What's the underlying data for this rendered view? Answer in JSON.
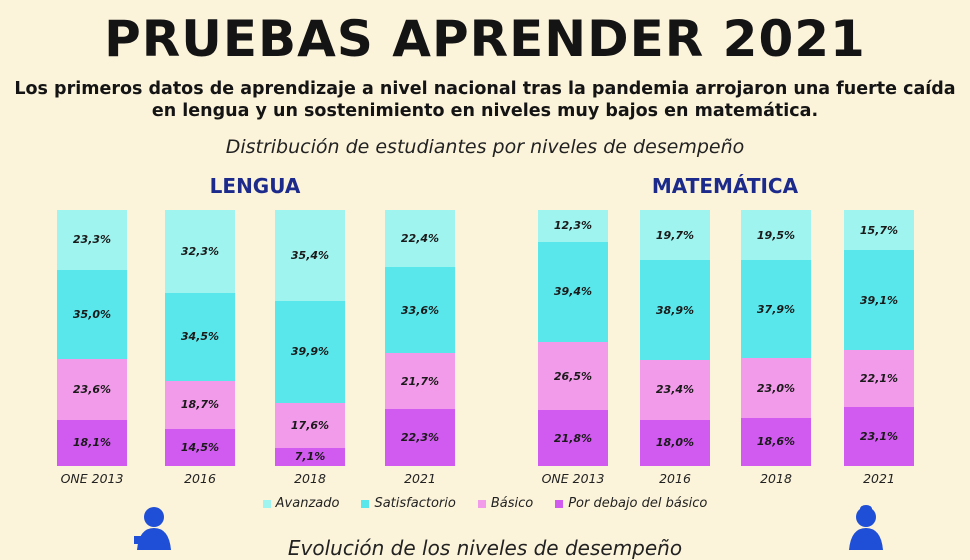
{
  "header": {
    "title": "PRUEBAS APRENDER 2021",
    "subtitle": "Los primeros datos de aprendizaje a nivel nacional tras la pandemia arrojaron una fuerte caída en lengua y un sostenimiento en niveles muy bajos en matemática.",
    "caption": "Distribución de estudiantes por niveles de desempeño"
  },
  "bottom_caption": "Evolución de los niveles de desempeño",
  "colors": {
    "avanzado": "#9ff4f0",
    "satisfactorio": "#5ae7ec",
    "basico": "#f29bea",
    "debajo": "#d15bf1",
    "background": "#fbf3da",
    "panel_title": "#1c2a8c"
  },
  "legend": [
    "Avanzado",
    "Satisfactorio",
    "Básico",
    "Por debajo del básico"
  ],
  "chart_data": [
    {
      "type": "bar",
      "stacked": true,
      "title": "LENGUA",
      "categories": [
        "ONE 2013",
        "2016",
        "2018",
        "2021"
      ],
      "series": [
        {
          "name": "Por debajo del básico",
          "values": [
            18.1,
            14.5,
            7.1,
            22.3
          ],
          "labels": [
            "18,1%",
            "14,5%",
            "7,1%",
            "22,3%"
          ]
        },
        {
          "name": "Básico",
          "values": [
            23.6,
            18.7,
            17.6,
            21.7
          ],
          "labels": [
            "23,6%",
            "18,7%",
            "17,6%",
            "21,7%"
          ]
        },
        {
          "name": "Satisfactorio",
          "values": [
            35.0,
            34.5,
            39.9,
            33.6
          ],
          "labels": [
            "35,0%",
            "34,5%",
            "39,9%",
            "33,6%"
          ]
        },
        {
          "name": "Avanzado",
          "values": [
            23.3,
            32.3,
            35.4,
            22.4
          ],
          "labels": [
            "23,3%",
            "32,3%",
            "35,4%",
            "22,4%"
          ]
        }
      ],
      "ylim": [
        0,
        100
      ]
    },
    {
      "type": "bar",
      "stacked": true,
      "title": "MATEMÁTICA",
      "categories": [
        "ONE 2013",
        "2016",
        "2018",
        "2021"
      ],
      "series": [
        {
          "name": "Por debajo del básico",
          "values": [
            21.8,
            18.0,
            18.6,
            23.1
          ],
          "labels": [
            "21,8%",
            "18,0%",
            "18,6%",
            "23,1%"
          ]
        },
        {
          "name": "Básico",
          "values": [
            26.5,
            23.4,
            23.0,
            22.1
          ],
          "labels": [
            "26,5%",
            "23,4%",
            "23,0%",
            "22,1%"
          ]
        },
        {
          "name": "Satisfactorio",
          "values": [
            39.4,
            38.9,
            37.9,
            39.1
          ],
          "labels": [
            "39,4%",
            "38,9%",
            "37,9%",
            "39,1%"
          ]
        },
        {
          "name": "Avanzado",
          "values": [
            12.3,
            19.7,
            19.5,
            15.7
          ],
          "labels": [
            "12,3%",
            "19,7%",
            "19,5%",
            "15,7%"
          ]
        }
      ],
      "ylim": [
        0,
        100
      ]
    }
  ]
}
